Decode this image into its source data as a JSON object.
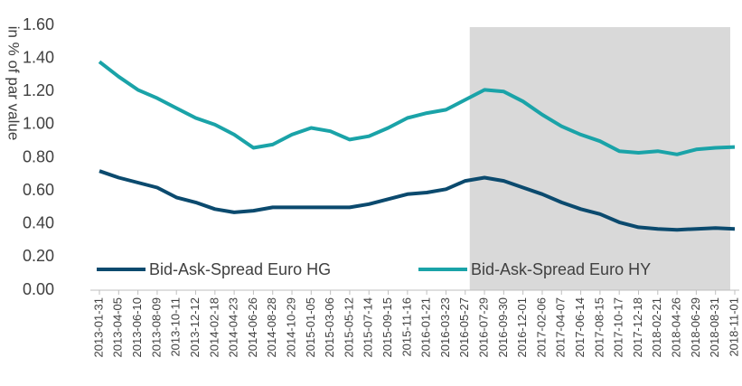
{
  "chart_data": {
    "type": "line",
    "y_label": "in % of par value",
    "categories": [
      "2013-01-31",
      "2013-04-05",
      "2013-06-10",
      "2013-08-09",
      "2013-10-11",
      "2013-12-12",
      "2014-02-18",
      "2014-04-23",
      "2014-06-26",
      "2014-08-28",
      "2014-10-29",
      "2015-01-05",
      "2015-03-06",
      "2015-05-12",
      "2015-07-14",
      "2015-09-15",
      "2015-11-16",
      "2016-01-21",
      "2016-03-23",
      "2016-05-27",
      "2016-07-29",
      "2016-09-30",
      "2016-12-01",
      "2017-02-06",
      "2017-04-07",
      "2017-06-14",
      "2017-08-15",
      "2017-10-17",
      "2017-12-18",
      "2018-02-21",
      "2018-04-26",
      "2018-06-29",
      "2018-08-31",
      "2018-11-01"
    ],
    "series": [
      {
        "name": "Bid-Ask-Spread Euro HG",
        "color": "#0b4a6e",
        "values": [
          0.72,
          0.68,
          0.65,
          0.62,
          0.56,
          0.53,
          0.49,
          0.47,
          0.48,
          0.5,
          0.5,
          0.5,
          0.5,
          0.5,
          0.52,
          0.55,
          0.58,
          0.59,
          0.61,
          0.66,
          0.68,
          0.66,
          0.62,
          0.58,
          0.53,
          0.49,
          0.46,
          0.41,
          0.38,
          0.37,
          0.365,
          0.37,
          0.375,
          0.37
        ]
      },
      {
        "name": "Bid-Ask-Spread Euro HY",
        "color": "#1aa3a8",
        "values": [
          1.38,
          1.29,
          1.21,
          1.16,
          1.1,
          1.04,
          1.0,
          0.94,
          0.86,
          0.88,
          0.94,
          0.98,
          0.96,
          0.91,
          0.93,
          0.98,
          1.04,
          1.07,
          1.09,
          1.15,
          1.21,
          1.2,
          1.14,
          1.06,
          0.99,
          0.94,
          0.9,
          0.84,
          0.83,
          0.84,
          0.82,
          0.85,
          0.86,
          0.865
        ]
      }
    ],
    "shaded_range": {
      "from": "2016-05-27",
      "to": "2018-11-01",
      "color": "#d9d9d9"
    },
    "ylim": [
      0,
      1.6
    ],
    "yticks": [
      {
        "value": 0,
        "label": "0.00"
      },
      {
        "value": 0.2,
        "label": "0.20"
      },
      {
        "value": 0.4,
        "label": "0.40"
      },
      {
        "value": 0.6,
        "label": "0.60"
      },
      {
        "value": 0.8,
        "label": "0.80"
      },
      {
        "value": 1,
        "label": "1.00"
      },
      {
        "value": 1.2,
        "label": "1.20"
      },
      {
        "value": 1.4,
        "label": "1.40"
      },
      {
        "value": 1.6,
        "label": "1.60"
      }
    ],
    "legend": "bottom",
    "grid": false
  }
}
